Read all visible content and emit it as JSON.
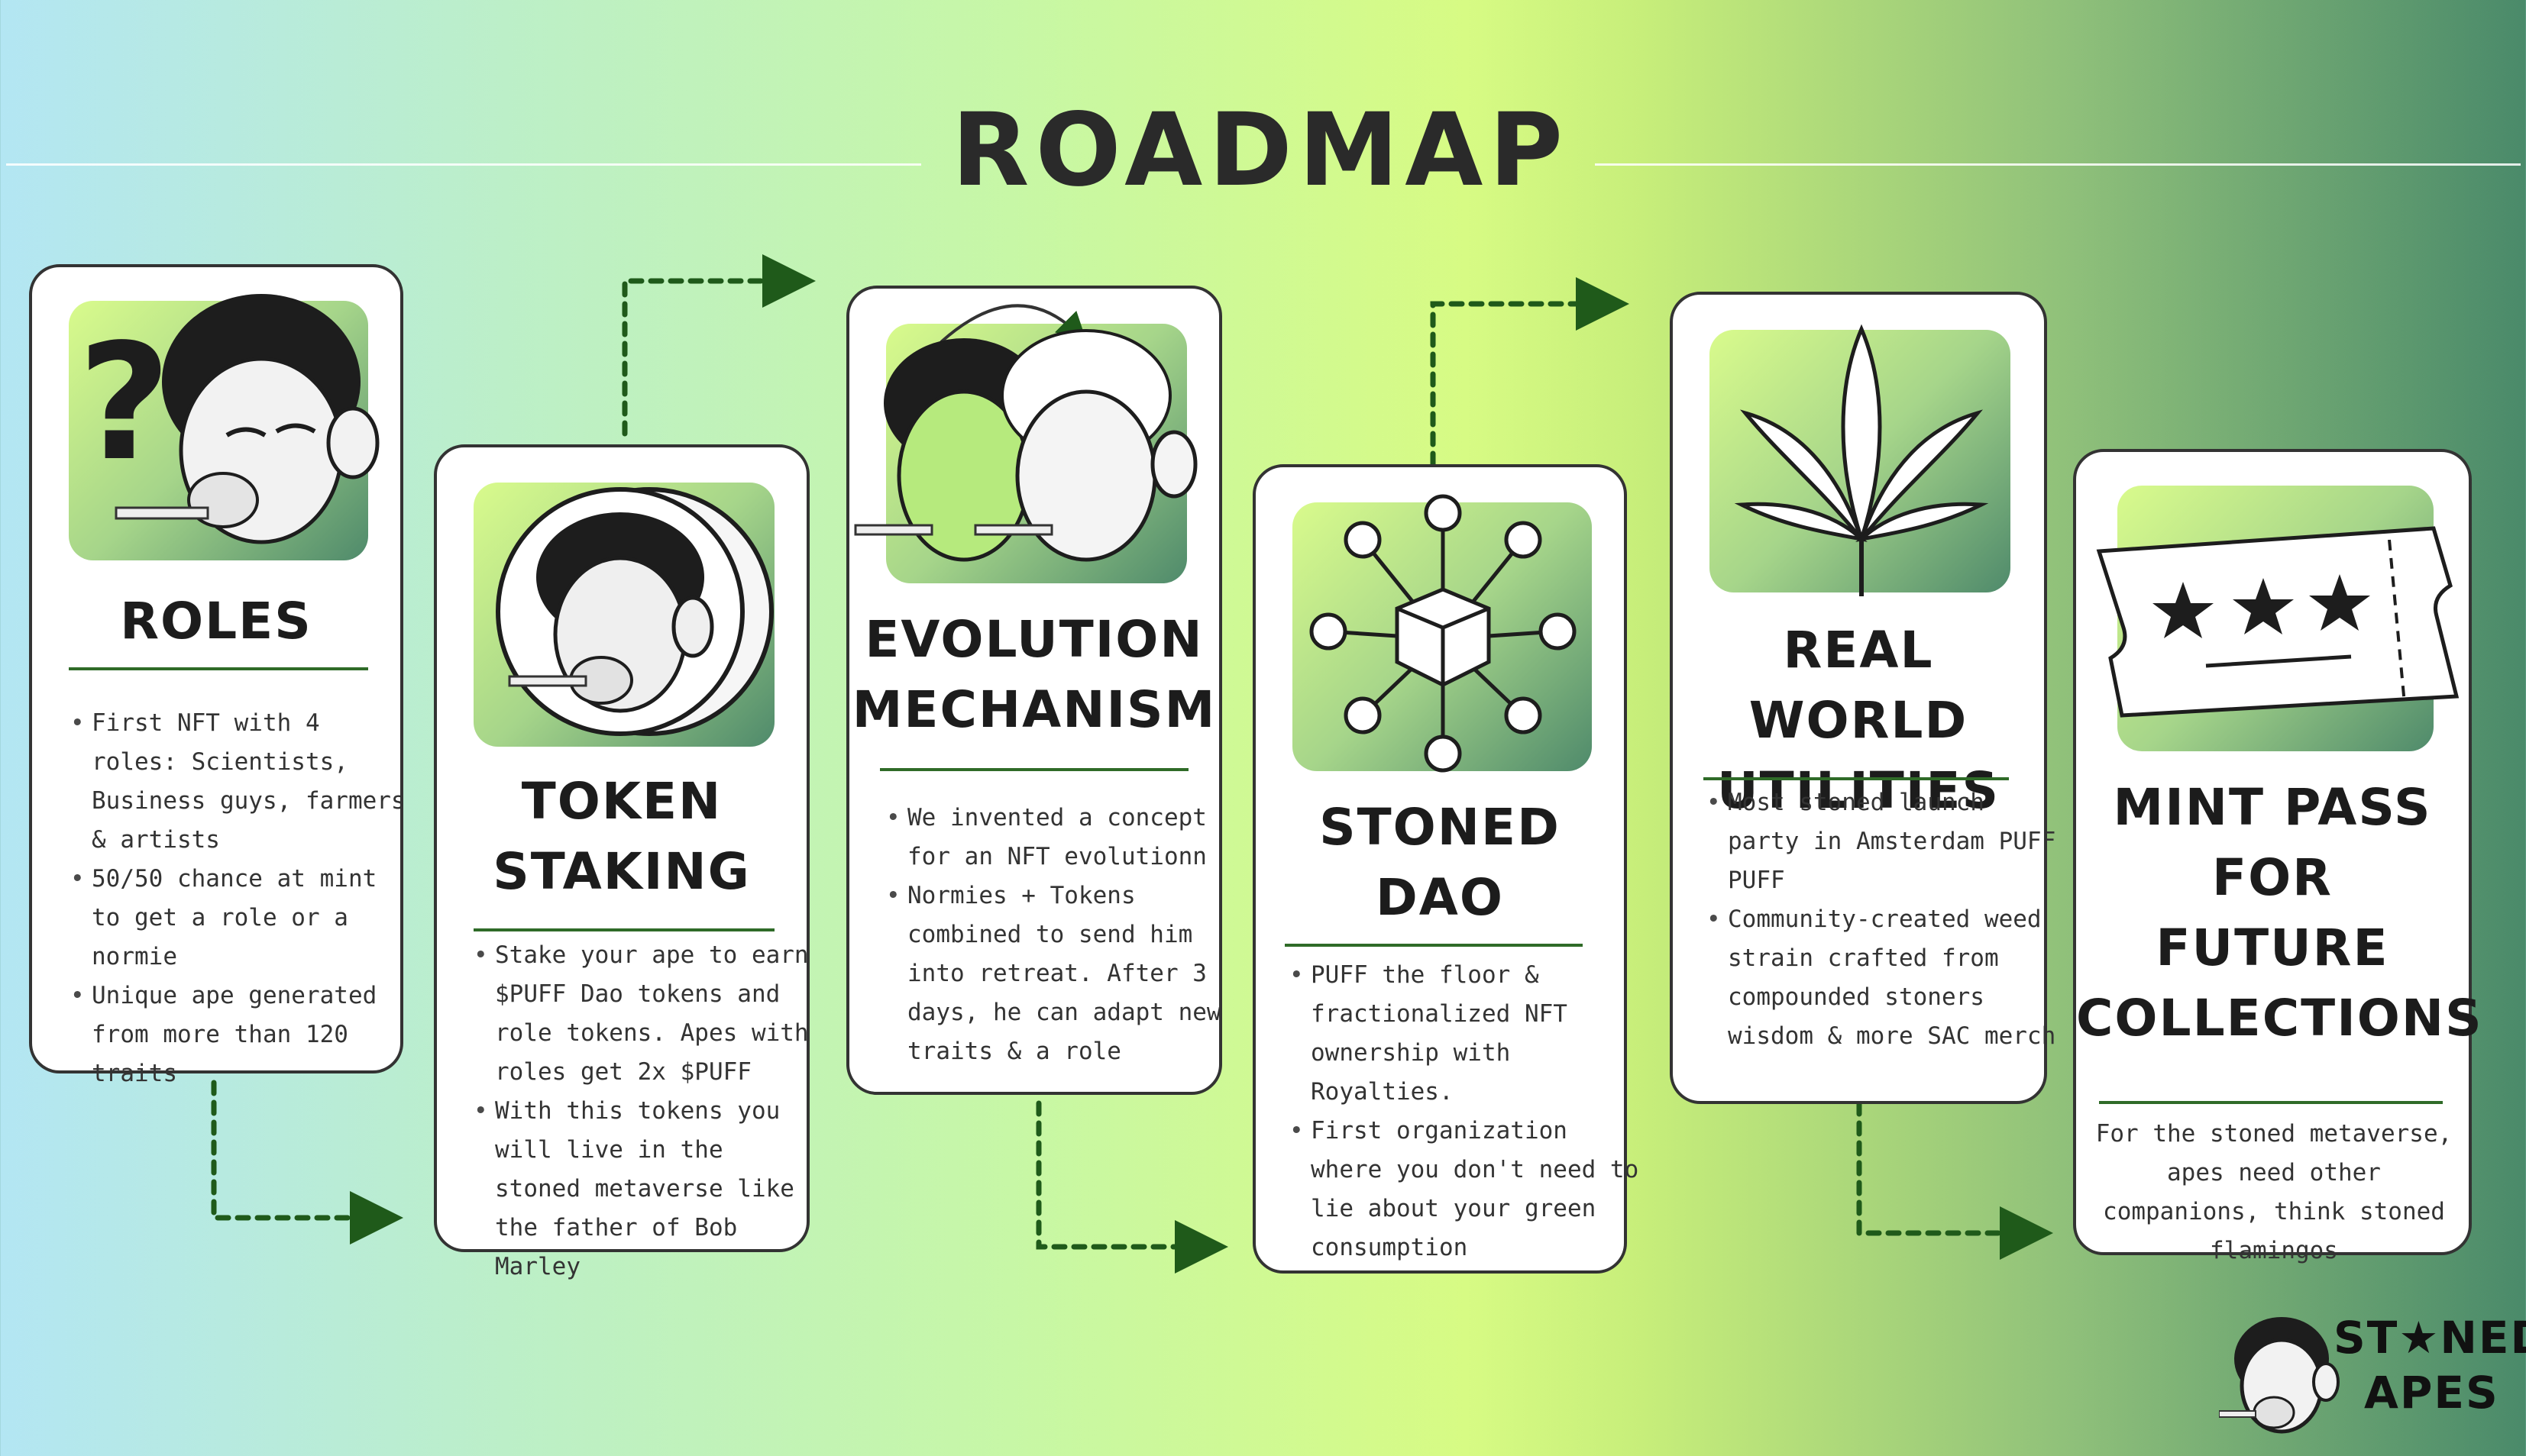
{
  "title": "ROADMAP",
  "cards": [
    {
      "title_lines": [
        "ROLES"
      ],
      "bullets": [
        "First NFT with 4 roles: Scientists, Business guys, farmers & artists",
        "50/50 chance at mint to get a role or a normie",
        "Unique ape generated from more than 120 traits"
      ]
    },
    {
      "title_lines": [
        "TOKEN",
        "STAKING"
      ],
      "bullets": [
        "Stake your ape to earn $PUFF Dao tokens and role tokens. Apes with roles get 2x $PUFF",
        "With this tokens you will live in the stoned metaverse like the father of Bob Marley"
      ]
    },
    {
      "title_lines": [
        "EVOLUTION",
        "MECHANISM"
      ],
      "bullets": [
        "We invented a concept for an NFT evolutionn",
        "Normies + Tokens combined to send him into retreat. After 3 days, he can adapt new traits & a role"
      ]
    },
    {
      "title_lines": [
        "STONED",
        "DAO"
      ],
      "bullets": [
        "PUFF the floor & fractionalized NFT ownership with Royalties.",
        "First organization where you don't need to lie about your green consumption"
      ]
    },
    {
      "title_lines": [
        "REAL WORLD",
        "UTILITIES"
      ],
      "bullets": [
        "Most stoned launch party in Amsterdam PUFF PUFF",
        "Community-created weed strain crafted from compounded stoners wisdom & more SAC merch"
      ]
    },
    {
      "title_lines": [
        "MINT PASS",
        "FOR",
        "FUTURE",
        "COLLECTIONS"
      ],
      "text": "For the stoned metaverse, apes need other companions, think stoned flamingos"
    }
  ],
  "logo": {
    "line1": "ST★NED",
    "line2": "APES"
  },
  "colors": {
    "accent_green": "#2f6b28",
    "connector_green": "#1f5a1a",
    "card_border": "#333333"
  }
}
